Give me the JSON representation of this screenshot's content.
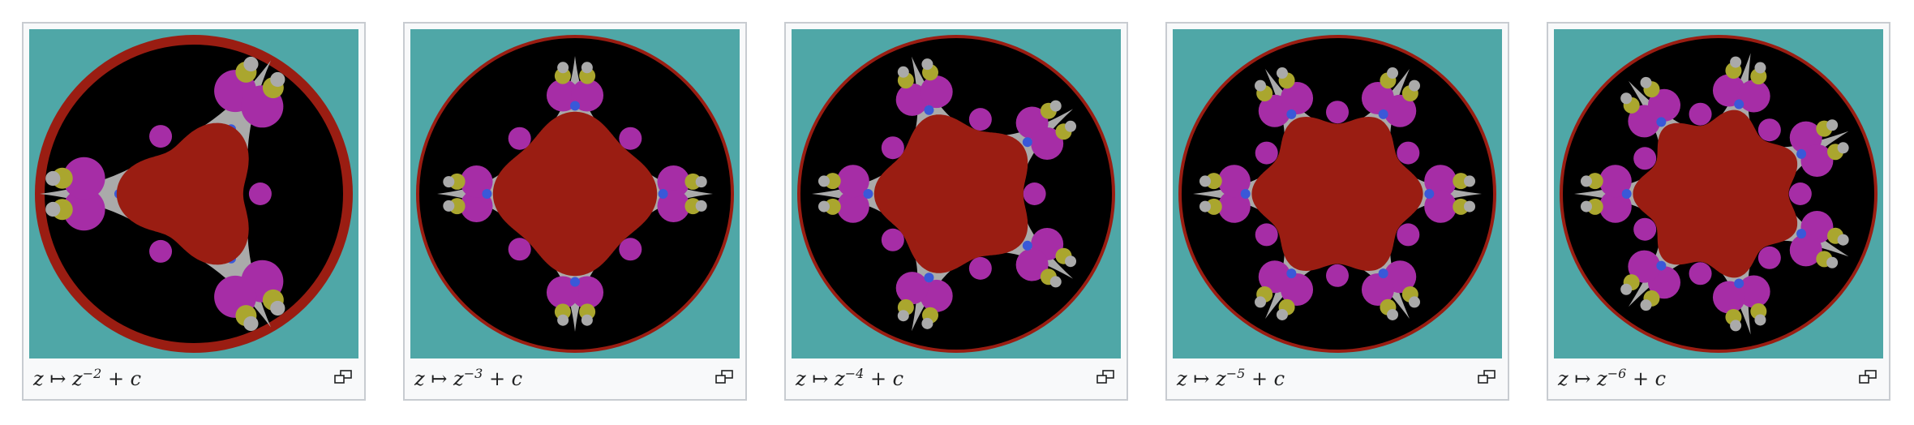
{
  "gallery": {
    "items": [
      {
        "lhs": "z",
        "arrow": "↦",
        "base": "z",
        "exponent": "−2",
        "rhs": "+ c",
        "symmetry": 3,
        "enlarge_icon": "enlarge-icon"
      },
      {
        "lhs": "z",
        "arrow": "↦",
        "base": "z",
        "exponent": "−3",
        "rhs": "+ c",
        "symmetry": 4,
        "enlarge_icon": "enlarge-icon"
      },
      {
        "lhs": "z",
        "arrow": "↦",
        "base": "z",
        "exponent": "−4",
        "rhs": "+ c",
        "symmetry": 5,
        "enlarge_icon": "enlarge-icon"
      },
      {
        "lhs": "z",
        "arrow": "↦",
        "base": "z",
        "exponent": "−5",
        "rhs": "+ c",
        "symmetry": 6,
        "enlarge_icon": "enlarge-icon"
      },
      {
        "lhs": "z",
        "arrow": "↦",
        "base": "z",
        "exponent": "−6",
        "rhs": "+ c",
        "symmetry": 7,
        "enlarge_icon": "enlarge-icon"
      }
    ]
  },
  "colors": {
    "teal": "#4fa7a7",
    "black": "#000000",
    "red": "#9a1d12",
    "magenta": "#a62da6",
    "olive": "#aaa62e",
    "grey": "#aaaaaa",
    "blue": "#3a58d8",
    "card_border": "#c8ccd1",
    "card_bg": "#f8f9fa",
    "caption_text": "#202122"
  }
}
